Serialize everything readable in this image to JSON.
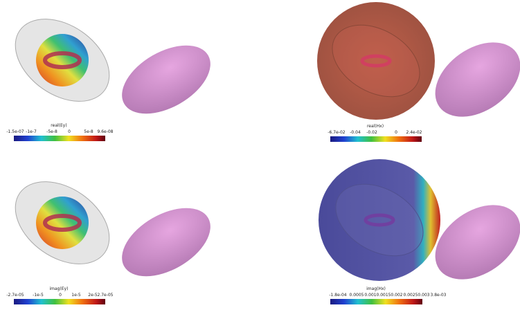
{
  "panels": [
    {
      "colorbar": {
        "title": "real(Ey)",
        "ticks": [
          "-1.5e-07",
          "-1e-7",
          "-5e-8",
          "0",
          "5e-8",
          "9.6e-08"
        ]
      }
    },
    {
      "colorbar": {
        "title": "real(Hx)",
        "ticks": [
          "-6.7e-02",
          "-0.04",
          "-0.02",
          "0",
          "2.4e-02"
        ]
      }
    },
    {
      "colorbar": {
        "title": "imag(Ey)",
        "ticks": [
          "-2.7e-05",
          "-1e-5",
          "0",
          "1e-5",
          "2e-5",
          "2.7e-05"
        ]
      }
    },
    {
      "colorbar": {
        "title": "imag(Hx)",
        "ticks": [
          "-1.8e-04",
          "0.0005",
          "0.001",
          "0.0015",
          "0.002",
          "0.0025",
          "0.003",
          "3.8e-03"
        ]
      }
    }
  ]
}
